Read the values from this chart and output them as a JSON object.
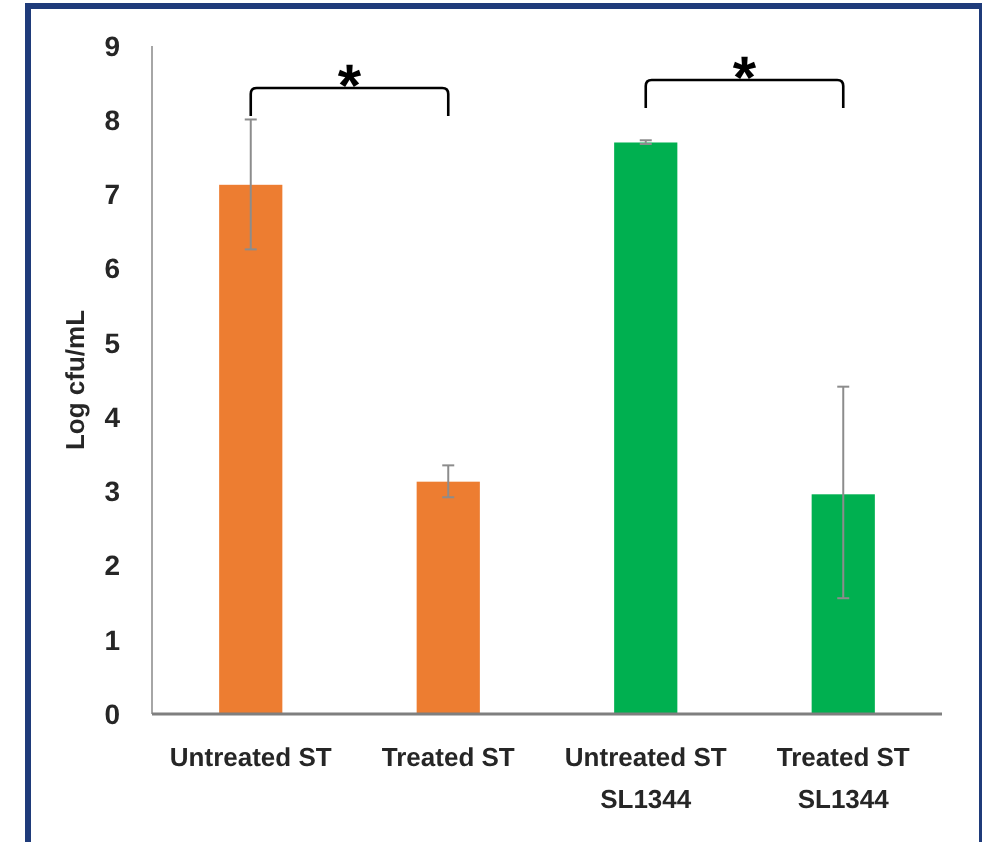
{
  "chart_data": {
    "type": "bar",
    "ylabel": "Log cfu/mL",
    "categories": [
      "Untreated ST",
      "Treated ST",
      "Untreated ST SL1344",
      "Treated ST SL1344"
    ],
    "values": [
      7.13,
      3.13,
      7.7,
      2.96
    ],
    "colors": [
      "#ed7d31",
      "#ed7d31",
      "#00b050",
      "#00b050"
    ],
    "errors": [
      [
        6.26,
        8.01
      ],
      [
        2.92,
        3.35
      ],
      [
        7.68,
        7.73
      ],
      [
        1.56,
        4.41
      ]
    ],
    "ylim": [
      0,
      9
    ],
    "yticks": [
      0,
      1,
      2,
      3,
      4,
      5,
      6,
      7,
      8,
      9
    ],
    "grid": false,
    "annotations": [
      "*",
      "*"
    ]
  }
}
